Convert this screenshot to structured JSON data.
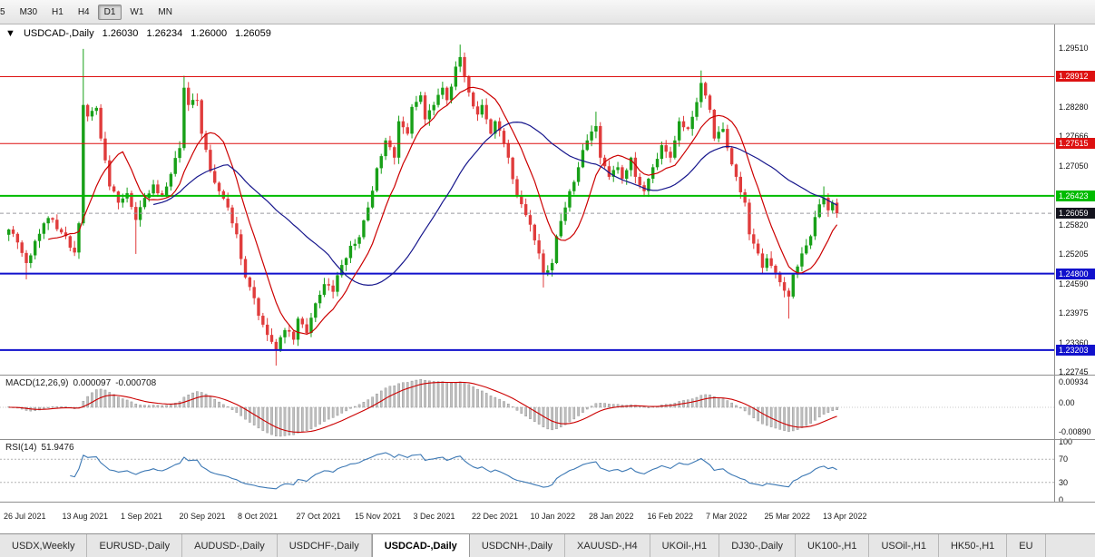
{
  "toolbar": {
    "timeframes": [
      "5",
      "M30",
      "H1",
      "H4",
      "D1",
      "W1",
      "MN"
    ],
    "active": "D1"
  },
  "chart": {
    "header": {
      "marker": "▼",
      "title": "USDCAD-,Daily",
      "open": "1.26030",
      "high": "1.26234",
      "low": "1.26000",
      "close": "1.26059"
    },
    "ylim": [
      1.2269,
      1.3
    ],
    "y_axis_labels": [
      "1.29510",
      "1.28895",
      "1.28280",
      "1.27666",
      "1.27050",
      "1.26435",
      "1.25820",
      "1.25205",
      "1.24590",
      "1.23975",
      "1.23360",
      "1.22745"
    ],
    "levels": [
      {
        "value": 1.28912,
        "label": "1.28912",
        "color": "#dd1111",
        "width": 1
      },
      {
        "value": 1.27515,
        "label": "1.27515",
        "color": "#dd1111",
        "width": 1
      },
      {
        "value": 1.26423,
        "label": "1.26423",
        "color": "#00bb00",
        "width": 2
      },
      {
        "value": 1.248,
        "label": "1.24800",
        "color": "#1111cc",
        "width": 2
      },
      {
        "value": 1.23203,
        "label": "1.23203",
        "color": "#1111cc",
        "width": 2
      }
    ],
    "current_price": {
      "value": 1.26059,
      "label": "1.26059",
      "bg": "#14141e"
    }
  },
  "chart_data": {
    "type": "candlestick",
    "symbol": "USDCAD-",
    "timeframe": "Daily",
    "count": 190,
    "seed": 20220413,
    "up_color": "#18a018",
    "down_color": "#e03c3c",
    "x_labels": [
      "26 Jul 2021",
      "13 Aug 2021",
      "1 Sep 2021",
      "20 Sep 2021",
      "8 Oct 2021",
      "27 Oct 2021",
      "15 Nov 2021",
      "3 Dec 2021",
      "22 Dec 2021",
      "10 Jan 2022",
      "28 Jan 2022",
      "16 Feb 2022",
      "7 Mar 2022",
      "25 Mar 2022",
      "13 Apr 2022"
    ],
    "close_anchors": [
      [
        0,
        1.2572
      ],
      [
        2,
        1.2545
      ],
      [
        4,
        1.2502
      ],
      [
        6,
        1.2548
      ],
      [
        9,
        1.2596
      ],
      [
        12,
        1.2566
      ],
      [
        15,
        1.2524
      ],
      [
        16,
        1.2585
      ],
      [
        17,
        1.2832
      ],
      [
        18,
        1.2808
      ],
      [
        20,
        1.2826
      ],
      [
        21,
        1.2762
      ],
      [
        23,
        1.2662
      ],
      [
        25,
        1.2628
      ],
      [
        27,
        1.2648
      ],
      [
        29,
        1.2592
      ],
      [
        31,
        1.2638
      ],
      [
        33,
        1.2666
      ],
      [
        35,
        1.2642
      ],
      [
        37,
        1.2688
      ],
      [
        39,
        1.2742
      ],
      [
        40,
        1.2868
      ],
      [
        41,
        1.2832
      ],
      [
        43,
        1.2842
      ],
      [
        44,
        1.2772
      ],
      [
        46,
        1.2694
      ],
      [
        48,
        1.2652
      ],
      [
        50,
        1.2618
      ],
      [
        52,
        1.2562
      ],
      [
        54,
        1.2472
      ],
      [
        55,
        1.2452
      ],
      [
        57,
        1.2392
      ],
      [
        59,
        1.2352
      ],
      [
        61,
        1.2322
      ],
      [
        63,
        1.2362
      ],
      [
        65,
        1.2342
      ],
      [
        66,
        1.2386
      ],
      [
        68,
        1.2356
      ],
      [
        70,
        1.2418
      ],
      [
        72,
        1.2458
      ],
      [
        74,
        1.2442
      ],
      [
        76,
        1.2498
      ],
      [
        78,
        1.2538
      ],
      [
        80,
        1.2556
      ],
      [
        82,
        1.2618
      ],
      [
        84,
        1.27
      ],
      [
        86,
        1.2758
      ],
      [
        88,
        1.2722
      ],
      [
        89,
        1.2798
      ],
      [
        91,
        1.2772
      ],
      [
        92,
        1.2828
      ],
      [
        94,
        1.2852
      ],
      [
        95,
        1.2802
      ],
      [
        97,
        1.2832
      ],
      [
        99,
        1.2868
      ],
      [
        100,
        1.2842
      ],
      [
        102,
        1.2912
      ],
      [
        103,
        1.2932
      ],
      [
        104,
        1.2892
      ],
      [
        105,
        1.2858
      ],
      [
        107,
        1.2812
      ],
      [
        108,
        1.2832
      ],
      [
        110,
        1.2772
      ],
      [
        111,
        1.2798
      ],
      [
        113,
        1.2752
      ],
      [
        114,
        1.2722
      ],
      [
        116,
        1.2642
      ],
      [
        118,
        1.2602
      ],
      [
        119,
        1.2582
      ],
      [
        121,
        1.2522
      ],
      [
        122,
        1.2482
      ],
      [
        124,
        1.2502
      ],
      [
        125,
        1.2558
      ],
      [
        127,
        1.2618
      ],
      [
        128,
        1.2652
      ],
      [
        130,
        1.2702
      ],
      [
        131,
        1.2738
      ],
      [
        132,
        1.2758
      ],
      [
        134,
        1.2788
      ],
      [
        135,
        1.2722
      ],
      [
        137,
        1.2682
      ],
      [
        139,
        1.2702
      ],
      [
        140,
        1.2678
      ],
      [
        142,
        1.2722
      ],
      [
        143,
        1.2682
      ],
      [
        145,
        1.2652
      ],
      [
        146,
        1.2678
      ],
      [
        147,
        1.2702
      ],
      [
        149,
        1.2748
      ],
      [
        151,
        1.2722
      ],
      [
        152,
        1.2758
      ],
      [
        153,
        1.2798
      ],
      [
        155,
        1.2782
      ],
      [
        157,
        1.2838
      ],
      [
        158,
        1.2878
      ],
      [
        160,
        1.2822
      ],
      [
        161,
        1.2762
      ],
      [
        163,
        1.2782
      ],
      [
        164,
        1.2742
      ],
      [
        166,
        1.2682
      ],
      [
        168,
        1.2628
      ],
      [
        169,
        1.2562
      ],
      [
        171,
        1.2522
      ],
      [
        172,
        1.2492
      ],
      [
        173,
        1.2512
      ],
      [
        175,
        1.2482
      ],
      [
        176,
        1.2462
      ],
      [
        178,
        1.2432
      ],
      [
        179,
        1.2478
      ],
      [
        181,
        1.2522
      ],
      [
        183,
        1.2558
      ],
      [
        184,
        1.2598
      ],
      [
        186,
        1.2638
      ],
      [
        187,
        1.2612
      ],
      [
        188,
        1.2628
      ],
      [
        189,
        1.26059
      ]
    ],
    "wick_overrides": [
      [
        4,
        "l",
        1.2468
      ],
      [
        17,
        "h",
        1.2949
      ],
      [
        29,
        "l",
        1.2521
      ],
      [
        40,
        "h",
        1.2893
      ],
      [
        61,
        "l",
        1.2288
      ],
      [
        103,
        "h",
        1.2958
      ],
      [
        122,
        "l",
        1.2451
      ],
      [
        134,
        "h",
        1.2818
      ],
      [
        158,
        "h",
        1.2904
      ],
      [
        178,
        "l",
        1.2386
      ],
      [
        186,
        "h",
        1.2662
      ]
    ],
    "ma_fast": {
      "period": 10,
      "color": "#cc0000"
    },
    "ma_slow": {
      "period": 34,
      "color": "#16168c"
    },
    "macd": {
      "label": "MACD(12,26,9)",
      "value_main": "0.000097",
      "value_signal": "-0.000708",
      "axis_labels": [
        "0.00934",
        "0.00",
        "-0.00890"
      ],
      "fast": 12,
      "slow": 26,
      "signal": 9,
      "hist_color": "#c0c0c0",
      "hist_edge": "#8a8a8a",
      "line_color": "#cc0000"
    },
    "rsi": {
      "label": "RSI(14)",
      "value": "51.9476",
      "period": 14,
      "axis_labels": [
        "100",
        "70",
        "30",
        "0"
      ],
      "levels": [
        70,
        30
      ],
      "color": "#3c78b4"
    }
  },
  "tabs": {
    "active": "USDCAD-,Daily",
    "items": [
      "USDX,Weekly",
      "EURUSD-,Daily",
      "AUDUSD-,Daily",
      "USDCHF-,Daily",
      "USDCAD-,Daily",
      "USDCNH-,Daily",
      "XAUUSD-,H4",
      "UKOil-,H1",
      "DJ30-,Daily",
      "UK100-,H1",
      "USOil-,H1",
      "HK50-,H1",
      "EU"
    ]
  }
}
